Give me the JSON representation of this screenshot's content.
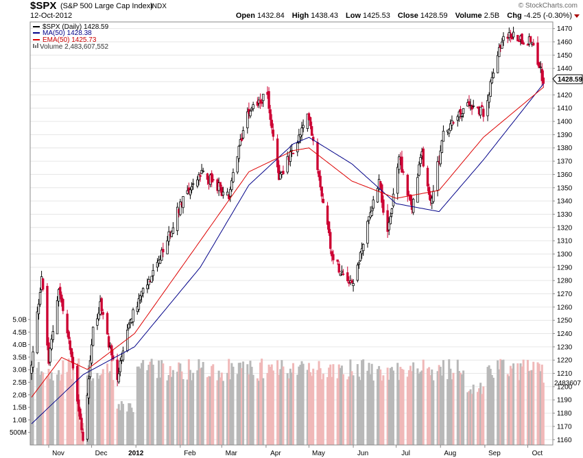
{
  "header": {
    "symbol": "$SPX",
    "name": "(S&P 500 Large Cap Index)",
    "exchange": "INDX",
    "date": "12-Oct-2012",
    "logo": "© StockCharts.com",
    "open_label": "Open",
    "open": "1432.84",
    "high_label": "High",
    "high": "1438.43",
    "low_label": "Low",
    "low": "1425.53",
    "close_label": "Close",
    "close": "1428.59",
    "volume_label": "Volume",
    "volume": "2.5B",
    "chg_label": "Chg",
    "chg": "-4.25 (-0.30%)"
  },
  "legend": {
    "price": "$SPX (Daily) 1428.59",
    "ma": "MA(50) 1428.38",
    "ema": "EMA(50) 1425.73",
    "volume": "Volume 2,483,607,552"
  },
  "colors": {
    "up": "#000000",
    "down": "#cc0033",
    "ma": "#000088",
    "ema": "#dd0000",
    "vol_up": "#b8b8b8",
    "vol_down": "#f0b8b8",
    "grid": "#e6e6e6"
  },
  "chart_data": {
    "type": "candlestick",
    "title": "$SPX (S&P 500 Large Cap Index) INDX",
    "x_labels": [
      "Nov",
      "Dec",
      "2012",
      "Feb",
      "Mar",
      "Apr",
      "May",
      "Jun",
      "Jul",
      "Aug",
      "Sep",
      "Oct"
    ],
    "y_ticks": [
      1160,
      1170,
      1180,
      1190,
      1200,
      1210,
      1220,
      1230,
      1240,
      1250,
      1260,
      1270,
      1280,
      1290,
      1300,
      1310,
      1320,
      1330,
      1340,
      1350,
      1360,
      1370,
      1380,
      1390,
      1400,
      1410,
      1420,
      1430,
      1440,
      1450,
      1460,
      1470
    ],
    "ylim": [
      1156,
      1475
    ],
    "volume_ticks": [
      "500M",
      "1.0B",
      "1.5B",
      "2.0B",
      "2.5B",
      "3.0B",
      "3.5B",
      "4.0B",
      "4.5B",
      "5.0B"
    ],
    "volume_range_billions": [
      0,
      5.0
    ],
    "last_close": "1428.59",
    "last_volume_label": "2483607",
    "close_anchors": [
      {
        "date": "2011-10-20",
        "close": 1215
      },
      {
        "date": "2011-10-27",
        "close": 1284
      },
      {
        "date": "2011-11-01",
        "close": 1218
      },
      {
        "date": "2011-11-08",
        "close": 1275
      },
      {
        "date": "2011-11-18",
        "close": 1216
      },
      {
        "date": "2011-11-25",
        "close": 1158
      },
      {
        "date": "2011-12-02",
        "close": 1244
      },
      {
        "date": "2011-12-07",
        "close": 1261
      },
      {
        "date": "2011-12-19",
        "close": 1206
      },
      {
        "date": "2011-12-30",
        "close": 1258
      },
      {
        "date": "2012-01-17",
        "close": 1293
      },
      {
        "date": "2012-02-03",
        "close": 1344
      },
      {
        "date": "2012-02-17",
        "close": 1361
      },
      {
        "date": "2012-03-06",
        "close": 1343
      },
      {
        "date": "2012-03-19",
        "close": 1409
      },
      {
        "date": "2012-04-02",
        "close": 1419
      },
      {
        "date": "2012-04-10",
        "close": 1358
      },
      {
        "date": "2012-04-20",
        "close": 1378
      },
      {
        "date": "2012-05-01",
        "close": 1405
      },
      {
        "date": "2012-05-18",
        "close": 1295
      },
      {
        "date": "2012-06-01",
        "close": 1278
      },
      {
        "date": "2012-06-19",
        "close": 1357
      },
      {
        "date": "2012-06-25",
        "close": 1313
      },
      {
        "date": "2012-07-03",
        "close": 1374
      },
      {
        "date": "2012-07-12",
        "close": 1334
      },
      {
        "date": "2012-07-19",
        "close": 1376
      },
      {
        "date": "2012-07-25",
        "close": 1338
      },
      {
        "date": "2012-08-03",
        "close": 1390
      },
      {
        "date": "2012-08-21",
        "close": 1413
      },
      {
        "date": "2012-08-31",
        "close": 1407
      },
      {
        "date": "2012-09-14",
        "close": 1466
      },
      {
        "date": "2012-10-05",
        "close": 1460
      },
      {
        "date": "2012-10-12",
        "close": 1428.59
      }
    ],
    "ma50_anchors": [
      {
        "date": "2011-10-20",
        "value": 1172
      },
      {
        "date": "2011-11-25",
        "value": 1209
      },
      {
        "date": "2011-12-31",
        "value": 1230
      },
      {
        "date": "2012-02-15",
        "value": 1290
      },
      {
        "date": "2012-03-20",
        "value": 1352
      },
      {
        "date": "2012-04-20",
        "value": 1383
      },
      {
        "date": "2012-05-01",
        "value": 1388
      },
      {
        "date": "2012-05-31",
        "value": 1368
      },
      {
        "date": "2012-07-01",
        "value": 1338
      },
      {
        "date": "2012-07-31",
        "value": 1332
      },
      {
        "date": "2012-08-31",
        "value": 1371
      },
      {
        "date": "2012-10-12",
        "value": 1428.38
      }
    ],
    "ema50_anchors": [
      {
        "date": "2011-10-20",
        "value": 1192
      },
      {
        "date": "2011-11-10",
        "value": 1222
      },
      {
        "date": "2011-11-28",
        "value": 1213
      },
      {
        "date": "2011-12-31",
        "value": 1240
      },
      {
        "date": "2012-02-15",
        "value": 1310
      },
      {
        "date": "2012-03-20",
        "value": 1362
      },
      {
        "date": "2012-04-20",
        "value": 1378
      },
      {
        "date": "2012-05-01",
        "value": 1380
      },
      {
        "date": "2012-05-31",
        "value": 1355
      },
      {
        "date": "2012-07-01",
        "value": 1342
      },
      {
        "date": "2012-07-31",
        "value": 1348
      },
      {
        "date": "2012-08-31",
        "value": 1388
      },
      {
        "date": "2012-10-12",
        "value": 1425.73
      }
    ],
    "series": [
      {
        "name": "MA(50)"
      },
      {
        "name": "EMA(50)"
      },
      {
        "name": "Volume"
      }
    ]
  }
}
